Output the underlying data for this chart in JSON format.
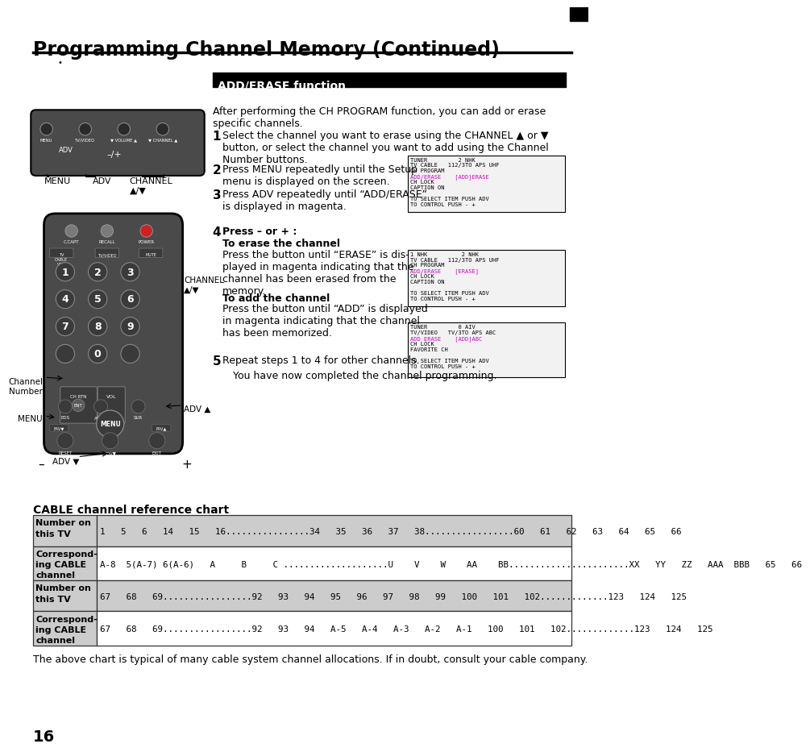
{
  "title": "Programming Channel Memory (Continued)",
  "page_number": "16",
  "background_color": "#ffffff",
  "add_erase_header": "ADD/ERASE function",
  "intro_text": "After performing the CH PROGRAM function, you can add or erase\nspecific channels.",
  "step5_text": "Repeat steps 1 to 4 for other channels.",
  "completed_text": "You have now completed the channel programming.",
  "cable_chart_title": "CABLE channel reference chart",
  "table_header_labels": [
    "Number on\nthis TV",
    "Correspond-\ning CABLE\nchannel",
    "Number on\nthis TV",
    "Correspond-\ning CABLE\nchannel"
  ],
  "footer_text": "The above chart is typical of many cable system channel allocations. If in doubt, consult your cable company.",
  "row1_tv": "1   5   6   14   15   16................34   35   36   37   38.................60   61   62   63   64   65   66",
  "row1_cable": "A-8  5(A-7) 6(A-6)   A     B     C ....................U    V    W    AA    BB.......................XX   YY   ZZ   AAA  BBB   65   66",
  "row2_tv": "67   68   69.................92   93   94   95   96   97   98   99   100   101   102.............123   124   125",
  "row2_cable": "67   68   69.................92   93   94   A-5   A-4   A-3   A-2   A-1   100   101   102.............123   124   125"
}
